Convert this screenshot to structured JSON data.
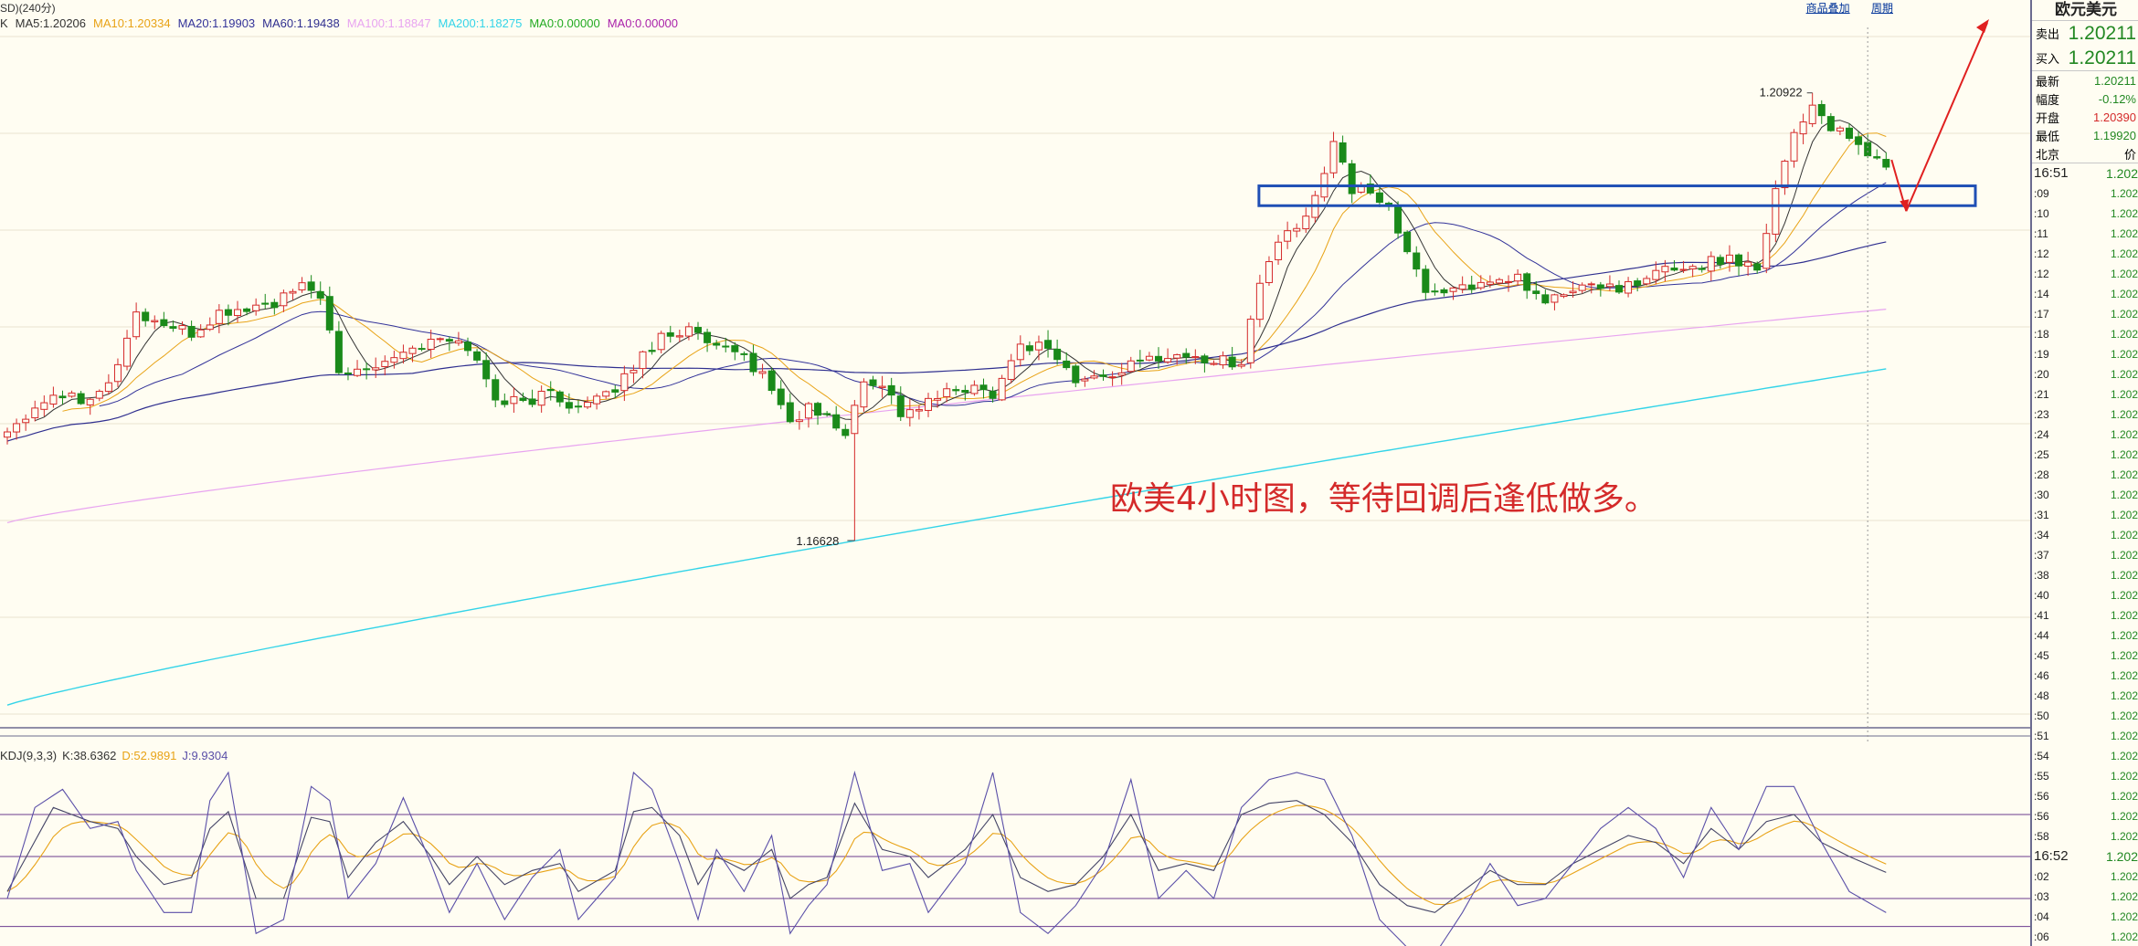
{
  "header": {
    "title": "SD)(240分)",
    "links": [
      "商品叠加",
      "周期"
    ]
  },
  "legend_main": [
    {
      "label": "K",
      "color": "#333333"
    },
    {
      "label": "MA5:1.20206",
      "color": "#333333"
    },
    {
      "label": "MA10:1.20334",
      "color": "#e8a317"
    },
    {
      "label": "MA20:1.19903",
      "color": "#333399"
    },
    {
      "label": "MA60:1.19438",
      "color": "#2f2f8f"
    },
    {
      "label": "MA100:1.18847",
      "color": "#e8a4f0"
    },
    {
      "label": "MA200:1.18275",
      "color": "#33d4e8"
    },
    {
      "label": "MA0:0.00000",
      "color": "#22aa22"
    },
    {
      "label": "MA0:0.00000",
      "color": "#aa22aa"
    }
  ],
  "legend_kdj": [
    {
      "label": "KDJ(9,3,3)",
      "color": "#333333"
    },
    {
      "label": "K:38.6362",
      "color": "#333333"
    },
    {
      "label": "D:52.9891",
      "color": "#e8a317"
    },
    {
      "label": "J:9.9304",
      "color": "#5a4fa8"
    }
  ],
  "annotation": "欧美4小时图，等待回调后逢低做多。",
  "chart_data": {
    "type": "candlestick",
    "price_ylim": [
      1.1485,
      1.2155
    ],
    "kdj_ylim": [
      -10,
      110
    ],
    "high_label": "1.20922",
    "low_label": "1.16628",
    "high_value": 1.20922,
    "low_value": 1.16628,
    "zone": [
      1.1984,
      1.2003
    ],
    "ma_last": {
      "ma5": 1.20206,
      "ma10": 1.20334,
      "ma20": 1.19903,
      "ma60": 1.19438,
      "ma100": 1.18847,
      "ma200": 1.18275
    },
    "kdj_last": {
      "K": 38.6362,
      "D": 52.9891,
      "J": 9.9304
    },
    "kdj_levels": [
      80,
      50,
      20,
      0
    ],
    "anchors": [
      [
        0,
        1.1767
      ],
      [
        2,
        1.1785
      ],
      [
        5,
        1.1805
      ],
      [
        8,
        1.18
      ],
      [
        11,
        1.1812
      ],
      [
        14,
        1.188
      ],
      [
        17,
        1.187
      ],
      [
        20,
        1.186
      ],
      [
        23,
        1.188
      ],
      [
        26,
        1.1885
      ],
      [
        29,
        1.189
      ],
      [
        32,
        1.1905
      ],
      [
        34,
        1.19
      ],
      [
        36,
        1.182
      ],
      [
        39,
        1.183
      ],
      [
        43,
        1.1845
      ],
      [
        47,
        1.1855
      ],
      [
        50,
        1.185
      ],
      [
        53,
        1.18
      ],
      [
        56,
        1.1795
      ],
      [
        59,
        1.1805
      ],
      [
        62,
        1.179
      ],
      [
        65,
        1.18
      ],
      [
        68,
        1.183
      ],
      [
        71,
        1.186
      ],
      [
        74,
        1.1865
      ],
      [
        77,
        1.1845
      ],
      [
        80,
        1.184
      ],
      [
        83,
        1.181
      ],
      [
        85,
        1.1775
      ],
      [
        87,
        1.179
      ],
      [
        89,
        1.178
      ],
      [
        91,
        1.1765
      ],
      [
        93,
        1.1815
      ],
      [
        95,
        1.1815
      ],
      [
        97,
        1.1785
      ],
      [
        99,
        1.179
      ],
      [
        101,
        1.18
      ],
      [
        104,
        1.181
      ],
      [
        107,
        1.1805
      ],
      [
        110,
        1.185
      ],
      [
        113,
        1.185
      ],
      [
        116,
        1.1815
      ],
      [
        119,
        1.182
      ],
      [
        122,
        1.183
      ],
      [
        125,
        1.184
      ],
      [
        128,
        1.184
      ],
      [
        131,
        1.1835
      ],
      [
        134,
        1.1835
      ],
      [
        136,
        1.191
      ],
      [
        138,
        1.195
      ],
      [
        140,
        1.196
      ],
      [
        142,
        1.199
      ],
      [
        144,
        1.205
      ],
      [
        146,
        1.2
      ],
      [
        148,
        1.1995
      ],
      [
        150,
        1.1985
      ],
      [
        152,
        1.1935
      ],
      [
        154,
        1.1905
      ],
      [
        156,
        1.19
      ],
      [
        158,
        1.191
      ],
      [
        161,
        1.1905
      ],
      [
        164,
        1.1915
      ],
      [
        166,
        1.1895
      ],
      [
        168,
        1.1895
      ],
      [
        171,
        1.1905
      ],
      [
        174,
        1.1908
      ],
      [
        177,
        1.1905
      ],
      [
        180,
        1.1925
      ],
      [
        183,
        1.1925
      ],
      [
        185,
        1.193
      ],
      [
        187,
        1.1935
      ],
      [
        190,
        1.1925
      ],
      [
        192,
        1.2
      ],
      [
        194,
        1.2055
      ],
      [
        196,
        1.208
      ],
      [
        198,
        1.206
      ],
      [
        200,
        1.2045
      ],
      [
        202,
        1.2035
      ],
      [
        204,
        1.2021
      ]
    ],
    "kdj_k": [
      [
        0,
        25
      ],
      [
        5,
        85
      ],
      [
        9,
        75
      ],
      [
        12,
        70
      ],
      [
        14,
        50
      ],
      [
        17,
        30
      ],
      [
        20,
        35
      ],
      [
        22,
        70
      ],
      [
        24,
        82
      ],
      [
        27,
        20
      ],
      [
        30,
        20
      ],
      [
        33,
        78
      ],
      [
        35,
        75
      ],
      [
        37,
        35
      ],
      [
        40,
        60
      ],
      [
        43,
        75
      ],
      [
        46,
        50
      ],
      [
        48,
        30
      ],
      [
        51,
        50
      ],
      [
        54,
        30
      ],
      [
        57,
        40
      ],
      [
        60,
        45
      ],
      [
        62,
        25
      ],
      [
        66,
        40
      ],
      [
        68,
        82
      ],
      [
        70,
        85
      ],
      [
        73,
        65
      ],
      [
        75,
        30
      ],
      [
        77,
        50
      ],
      [
        80,
        40
      ],
      [
        83,
        55
      ],
      [
        85,
        20
      ],
      [
        87,
        30
      ],
      [
        89,
        35
      ],
      [
        92,
        88
      ],
      [
        95,
        55
      ],
      [
        98,
        50
      ],
      [
        100,
        35
      ],
      [
        104,
        55
      ],
      [
        107,
        80
      ],
      [
        110,
        35
      ],
      [
        113,
        25
      ],
      [
        116,
        30
      ],
      [
        119,
        50
      ],
      [
        122,
        80
      ],
      [
        125,
        40
      ],
      [
        128,
        45
      ],
      [
        131,
        40
      ],
      [
        134,
        80
      ],
      [
        137,
        88
      ],
      [
        140,
        90
      ],
      [
        143,
        80
      ],
      [
        146,
        60
      ],
      [
        149,
        30
      ],
      [
        152,
        15
      ],
      [
        155,
        10
      ],
      [
        158,
        25
      ],
      [
        161,
        40
      ],
      [
        164,
        30
      ],
      [
        167,
        30
      ],
      [
        170,
        45
      ],
      [
        173,
        55
      ],
      [
        176,
        65
      ],
      [
        179,
        60
      ],
      [
        182,
        45
      ],
      [
        185,
        70
      ],
      [
        188,
        55
      ],
      [
        191,
        75
      ],
      [
        194,
        80
      ],
      [
        197,
        60
      ],
      [
        200,
        50
      ],
      [
        204,
        38.64
      ]
    ],
    "kdj_j": [
      [
        0,
        20
      ],
      [
        3,
        85
      ],
      [
        6,
        98
      ],
      [
        9,
        70
      ],
      [
        12,
        75
      ],
      [
        14,
        40
      ],
      [
        17,
        10
      ],
      [
        20,
        10
      ],
      [
        22,
        90
      ],
      [
        24,
        110
      ],
      [
        27,
        -5
      ],
      [
        30,
        5
      ],
      [
        33,
        100
      ],
      [
        35,
        90
      ],
      [
        37,
        20
      ],
      [
        40,
        45
      ],
      [
        43,
        92
      ],
      [
        46,
        45
      ],
      [
        48,
        10
      ],
      [
        51,
        45
      ],
      [
        54,
        5
      ],
      [
        57,
        35
      ],
      [
        60,
        55
      ],
      [
        62,
        5
      ],
      [
        66,
        35
      ],
      [
        68,
        110
      ],
      [
        70,
        98
      ],
      [
        73,
        45
      ],
      [
        75,
        5
      ],
      [
        77,
        55
      ],
      [
        80,
        25
      ],
      [
        83,
        65
      ],
      [
        85,
        -5
      ],
      [
        87,
        15
      ],
      [
        89,
        30
      ],
      [
        92,
        110
      ],
      [
        95,
        40
      ],
      [
        98,
        45
      ],
      [
        100,
        10
      ],
      [
        104,
        45
      ],
      [
        107,
        110
      ],
      [
        110,
        10
      ],
      [
        113,
        -5
      ],
      [
        116,
        15
      ],
      [
        119,
        45
      ],
      [
        122,
        105
      ],
      [
        125,
        20
      ],
      [
        128,
        40
      ],
      [
        131,
        20
      ],
      [
        134,
        85
      ],
      [
        137,
        105
      ],
      [
        140,
        110
      ],
      [
        143,
        105
      ],
      [
        146,
        65
      ],
      [
        149,
        5
      ],
      [
        152,
        -15
      ],
      [
        155,
        -20
      ],
      [
        158,
        10
      ],
      [
        161,
        45
      ],
      [
        164,
        15
      ],
      [
        167,
        20
      ],
      [
        170,
        45
      ],
      [
        173,
        70
      ],
      [
        176,
        85
      ],
      [
        179,
        70
      ],
      [
        182,
        35
      ],
      [
        185,
        85
      ],
      [
        188,
        55
      ],
      [
        191,
        100
      ],
      [
        194,
        100
      ],
      [
        197,
        60
      ],
      [
        200,
        25
      ],
      [
        204,
        9.93
      ]
    ]
  },
  "panel": {
    "title": "欧元美元",
    "sell_label": "卖出",
    "sell_value": "1.20211",
    "buy_label": "买入",
    "buy_value": "1.20211",
    "rows": [
      {
        "label": "最新",
        "value": "1.20211",
        "color": "#228822"
      },
      {
        "label": "幅度",
        "value": "-0.12%",
        "color": "#228822"
      },
      {
        "label": "开盘",
        "value": "1.20390",
        "color": "#d42a2a"
      },
      {
        "label": "最低",
        "value": "1.19920",
        "color": "#228822"
      }
    ],
    "ticks_header_left": "北京",
    "ticks_header_right": "价",
    "ticks": [
      {
        "t": "16:51",
        "p": "1.202",
        "major": true
      },
      {
        "t": ":09",
        "p": "1.202"
      },
      {
        "t": ":10",
        "p": "1.202"
      },
      {
        "t": ":11",
        "p": "1.202"
      },
      {
        "t": ":12",
        "p": "1.202"
      },
      {
        "t": ":12",
        "p": "1.202"
      },
      {
        "t": ":14",
        "p": "1.202"
      },
      {
        "t": ":17",
        "p": "1.202"
      },
      {
        "t": ":18",
        "p": "1.202"
      },
      {
        "t": ":19",
        "p": "1.202"
      },
      {
        "t": ":20",
        "p": "1.202"
      },
      {
        "t": ":21",
        "p": "1.202"
      },
      {
        "t": ":23",
        "p": "1.202"
      },
      {
        "t": ":24",
        "p": "1.202"
      },
      {
        "t": ":25",
        "p": "1.202"
      },
      {
        "t": ":28",
        "p": "1.202"
      },
      {
        "t": ":30",
        "p": "1.202"
      },
      {
        "t": ":31",
        "p": "1.202"
      },
      {
        "t": ":34",
        "p": "1.202"
      },
      {
        "t": ":37",
        "p": "1.202"
      },
      {
        "t": ":38",
        "p": "1.202"
      },
      {
        "t": ":40",
        "p": "1.202"
      },
      {
        "t": ":41",
        "p": "1.202"
      },
      {
        "t": ":44",
        "p": "1.202"
      },
      {
        "t": ":45",
        "p": "1.202"
      },
      {
        "t": ":46",
        "p": "1.202"
      },
      {
        "t": ":48",
        "p": "1.202"
      },
      {
        "t": ":50",
        "p": "1.202"
      },
      {
        "t": ":51",
        "p": "1.202"
      },
      {
        "t": ":54",
        "p": "1.202"
      },
      {
        "t": ":55",
        "p": "1.202"
      },
      {
        "t": ":56",
        "p": "1.202"
      },
      {
        "t": ":56",
        "p": "1.202"
      },
      {
        "t": ":58",
        "p": "1.202"
      },
      {
        "t": "16:52",
        "p": "1.202",
        "major": true
      },
      {
        "t": ":02",
        "p": "1.202"
      },
      {
        "t": ":03",
        "p": "1.202"
      },
      {
        "t": ":04",
        "p": "1.202"
      },
      {
        "t": ":06",
        "p": "1.202"
      }
    ]
  }
}
